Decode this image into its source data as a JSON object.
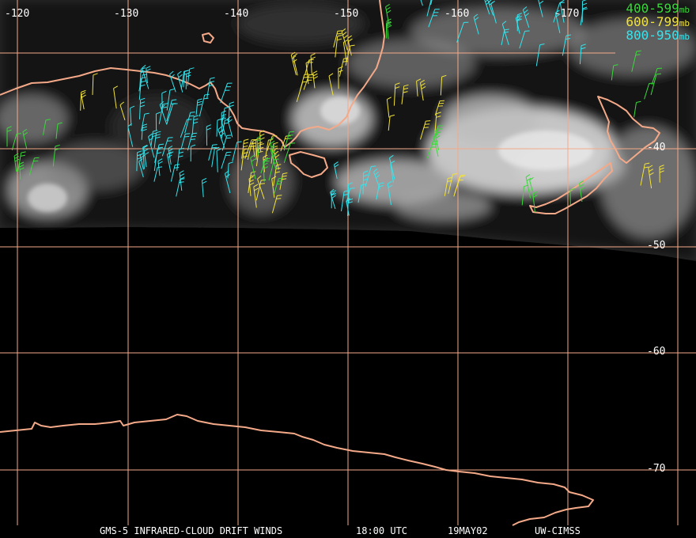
{
  "map": {
    "longitude_labels": [
      "-120",
      "-130",
      "-140",
      "-150",
      "-160",
      "-170"
    ],
    "latitude_labels": [
      "-40",
      "-50",
      "-60",
      "-70"
    ],
    "colors": {
      "grid": "#f4a988",
      "coast": "#f4a988",
      "barb_400_599": "#39d93a",
      "barb_600_799": "#f2e33a",
      "barb_800_950": "#33e5ee"
    }
  },
  "legend": [
    {
      "range": "400-599",
      "unit": "mb",
      "color": "#39d93a"
    },
    {
      "range": "600-799",
      "unit": "mb",
      "color": "#f2e33a"
    },
    {
      "range": "800-950",
      "unit": "mb",
      "color": "#33e5ee"
    }
  ],
  "footer": {
    "product": "GMS-5 INFRARED-CLOUD DRIFT WINDS",
    "time": "18:00 UTC",
    "date": "19MAY02",
    "source": "UW-CIMSS"
  }
}
